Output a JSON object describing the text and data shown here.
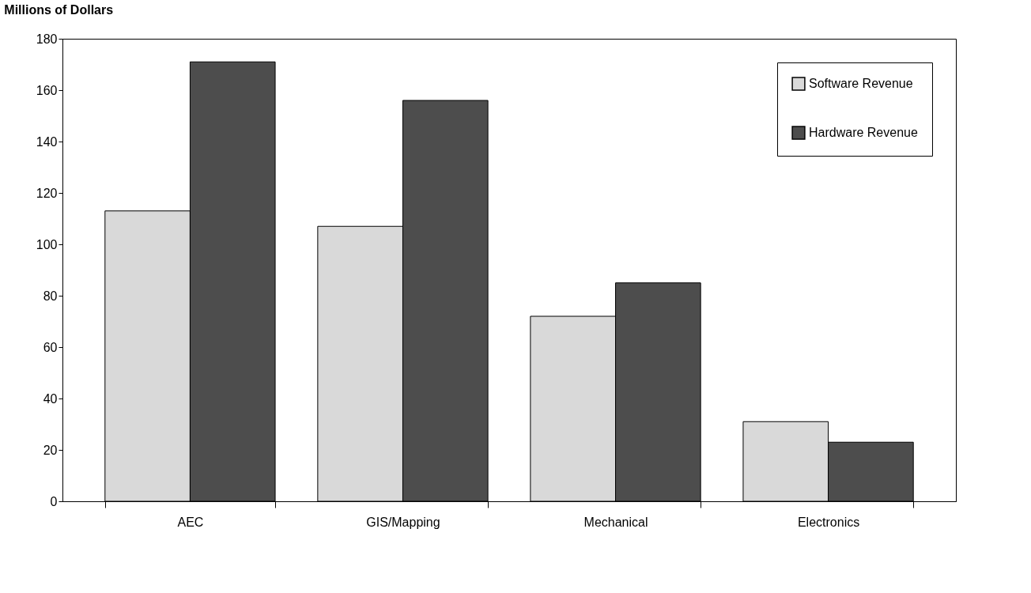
{
  "chart_data": {
    "type": "bar",
    "ylabel": "Millions of Dollars",
    "categories": [
      "AEC",
      "GIS/Mapping",
      "Mechanical",
      "Electronics"
    ],
    "series": [
      {
        "name": "Software Revenue",
        "color": "#d9d9d9",
        "values": [
          113,
          107,
          72,
          31
        ]
      },
      {
        "name": "Hardware Revenue",
        "color": "#4d4d4d",
        "values": [
          171,
          156,
          85,
          23
        ]
      }
    ],
    "ylim": [
      0,
      180
    ],
    "yticks": [
      0,
      20,
      40,
      60,
      80,
      100,
      120,
      140,
      160,
      180
    ],
    "grid": false,
    "legend": "top right"
  }
}
